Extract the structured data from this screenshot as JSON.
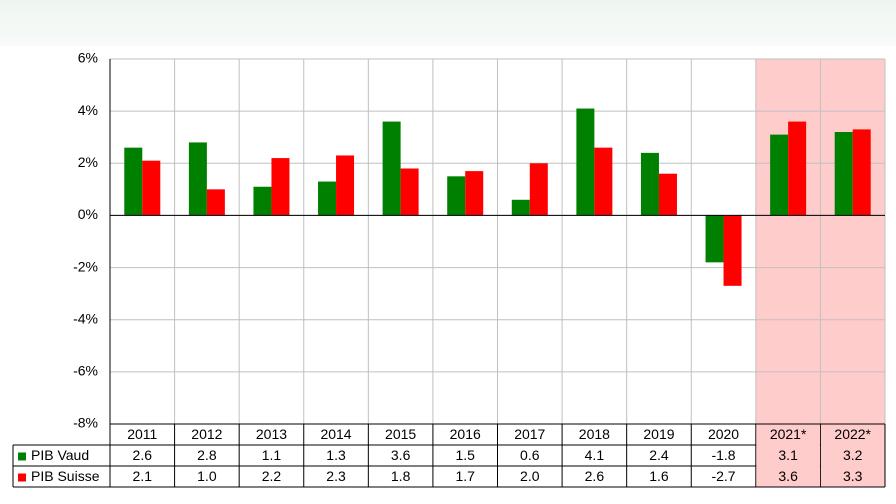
{
  "chart_data": {
    "type": "bar",
    "categories": [
      "2011",
      "2012",
      "2013",
      "2014",
      "2015",
      "2016",
      "2017",
      "2018",
      "2019",
      "2020",
      "2021*",
      "2022*"
    ],
    "series": [
      {
        "name": "PIB Vaud",
        "color": "#008000",
        "values": [
          2.6,
          2.8,
          1.1,
          1.3,
          3.6,
          1.5,
          0.6,
          4.1,
          2.4,
          -1.8,
          3.1,
          3.2
        ],
        "value_labels": [
          "2.6",
          "2.8",
          "1.1",
          "1.3",
          "3.6",
          "1.5",
          "0.6",
          "4.1",
          "2.4",
          "-1.8",
          "3.1",
          "3.2"
        ]
      },
      {
        "name": "PIB Suisse",
        "color": "#ff0000",
        "values": [
          2.1,
          1.0,
          2.2,
          2.3,
          1.8,
          1.7,
          2.0,
          2.6,
          1.6,
          -2.7,
          3.6,
          3.3
        ],
        "value_labels": [
          "2.1",
          "1.0",
          "2.2",
          "2.3",
          "1.8",
          "1.7",
          "2.0",
          "2.6",
          "1.6",
          "-2.7",
          "3.6",
          "3.3"
        ]
      }
    ],
    "ylim": [
      -8,
      6
    ],
    "yticks": [
      {
        "value": -8,
        "label": "-8%"
      },
      {
        "value": -6,
        "label": "-6%"
      },
      {
        "value": -4,
        "label": "-4%"
      },
      {
        "value": -2,
        "label": "-2%"
      },
      {
        "value": 0,
        "label": "0%"
      },
      {
        "value": 2,
        "label": "2%"
      },
      {
        "value": 4,
        "label": "4%"
      },
      {
        "value": 6,
        "label": "6%"
      }
    ],
    "grid": true,
    "shaded": [
      10,
      11
    ],
    "shade_color": "#ffcccc"
  }
}
